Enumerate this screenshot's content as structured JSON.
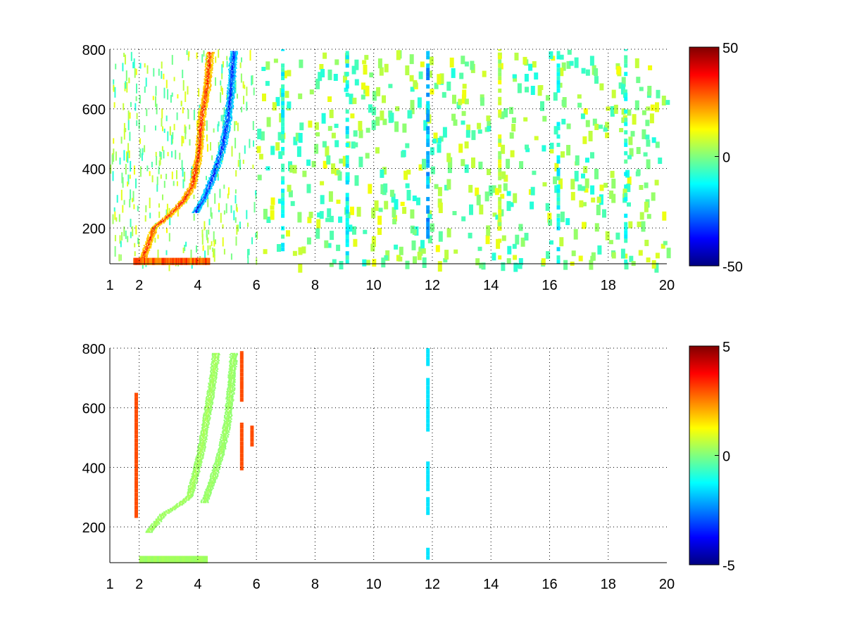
{
  "chart_data": [
    {
      "type": "heatmap",
      "title": "",
      "xlabel": "",
      "ylabel": "",
      "xlim": [
        1,
        20
      ],
      "ylim": [
        80,
        800
      ],
      "x_ticks": [
        "1",
        "2",
        "4",
        "6",
        "8",
        "10",
        "12",
        "14",
        "16",
        "18",
        "20"
      ],
      "x_tick_values": [
        1,
        2,
        4,
        6,
        8,
        10,
        12,
        14,
        16,
        18,
        20
      ],
      "y_ticks": [
        "200",
        "400",
        "600",
        "800"
      ],
      "y_tick_values": [
        200,
        400,
        600,
        800
      ],
      "grid": "dotted",
      "colormap": "jet",
      "colorbar": {
        "min": -50,
        "max": 50,
        "ticks": [
          "-50",
          "0",
          "50"
        ],
        "tick_values": [
          -50,
          0,
          50
        ]
      },
      "features": [
        {
          "name": "warm ridge",
          "value": 40,
          "points": [
            [
              2.1,
              95
            ],
            [
              2.5,
              200
            ],
            [
              3.0,
              240
            ],
            [
              3.5,
              290
            ],
            [
              3.8,
              340
            ],
            [
              4.0,
              440
            ],
            [
              4.1,
              560
            ],
            [
              4.3,
              680
            ],
            [
              4.4,
              790
            ]
          ]
        },
        {
          "name": "cold ridge",
          "value": -40,
          "points": [
            [
              3.9,
              250
            ],
            [
              4.2,
              300
            ],
            [
              4.5,
              370
            ],
            [
              4.8,
              460
            ],
            [
              5.0,
              560
            ],
            [
              5.1,
              650
            ],
            [
              5.2,
              790
            ]
          ]
        },
        {
          "name": "low band",
          "value": 35,
          "points": [
            [
              1.8,
              90
            ],
            [
              4.4,
              95
            ]
          ]
        }
      ],
      "vertical_bands": [
        {
          "x": 6.9,
          "value": -10
        },
        {
          "x": 9.1,
          "value": -12
        },
        {
          "x": 11.85,
          "value": -20
        },
        {
          "x": 14.3,
          "value": 6
        },
        {
          "x": 16.3,
          "value": -10
        },
        {
          "x": 18.6,
          "value": -8
        }
      ]
    },
    {
      "type": "heatmap",
      "title": "",
      "xlabel": "",
      "ylabel": "",
      "xlim": [
        1,
        20
      ],
      "ylim": [
        80,
        800
      ],
      "x_ticks": [
        "1",
        "2",
        "4",
        "6",
        "8",
        "10",
        "12",
        "14",
        "16",
        "18",
        "20"
      ],
      "x_tick_values": [
        1,
        2,
        4,
        6,
        8,
        10,
        12,
        14,
        16,
        18,
        20
      ],
      "y_ticks": [
        "200",
        "400",
        "600",
        "800"
      ],
      "y_tick_values": [
        200,
        400,
        600,
        800
      ],
      "grid": "dotted",
      "colormap": "jet",
      "colorbar": {
        "min": -5,
        "max": 5,
        "ticks": [
          "-5",
          "0",
          "5"
        ],
        "tick_values": [
          -5,
          0,
          5
        ]
      },
      "features": [
        {
          "name": "green ridge",
          "value": 0.5,
          "points": [
            [
              2.3,
              180
            ],
            [
              2.8,
              240
            ],
            [
              3.3,
              270
            ],
            [
              3.7,
              300
            ],
            [
              3.9,
              380
            ],
            [
              4.1,
              460
            ],
            [
              4.3,
              580
            ],
            [
              4.5,
              700
            ],
            [
              4.6,
              780
            ]
          ]
        },
        {
          "name": "green ridge 2",
          "value": 0.4,
          "points": [
            [
              4.2,
              280
            ],
            [
              4.5,
              360
            ],
            [
              4.8,
              460
            ],
            [
              5.0,
              560
            ],
            [
              5.1,
              660
            ],
            [
              5.2,
              780
            ]
          ]
        },
        {
          "name": "low band",
          "value": 0.4,
          "points": [
            [
              2.0,
              92
            ],
            [
              4.3,
              98
            ]
          ]
        }
      ],
      "vertical_bands": [
        {
          "x": 1.9,
          "value": 3,
          "ranges": [
            [
              230,
              650
            ]
          ]
        },
        {
          "x": 5.5,
          "value": 3,
          "ranges": [
            [
              390,
              550
            ],
            [
              620,
              790
            ]
          ]
        },
        {
          "x": 5.85,
          "value": 3,
          "ranges": [
            [
              470,
              540
            ]
          ]
        },
        {
          "x": 11.85,
          "value": -1.5,
          "ranges": [
            [
              90,
              130
            ],
            [
              240,
              300
            ],
            [
              320,
              420
            ],
            [
              520,
              700
            ],
            [
              740,
              800
            ]
          ]
        }
      ]
    }
  ]
}
